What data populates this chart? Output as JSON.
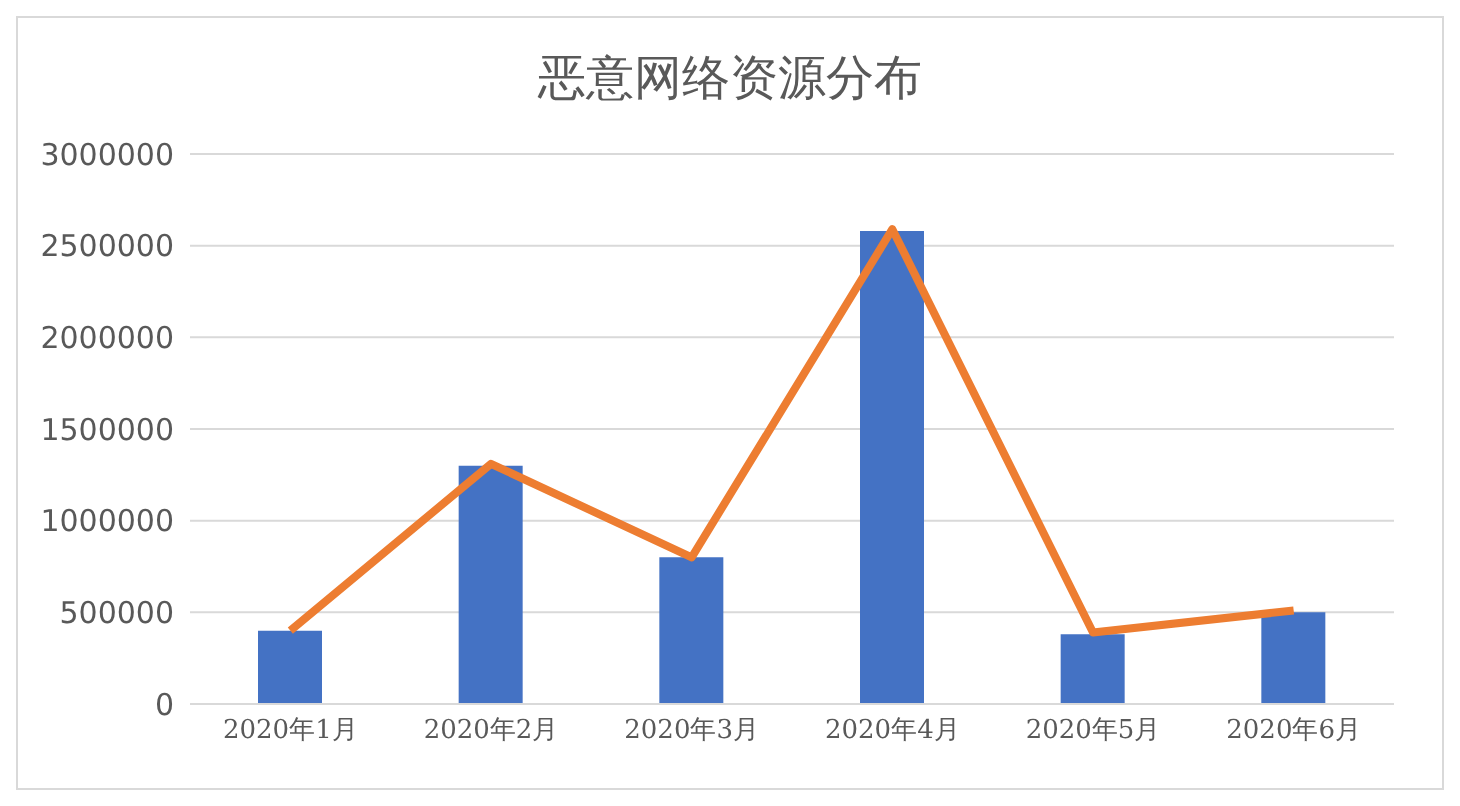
{
  "chart_data": {
    "type": "bar",
    "title": "恶意网络资源分布",
    "categories": [
      "2020年1月",
      "2020年2月",
      "2020年3月",
      "2020年4月",
      "2020年5月",
      "2020年6月"
    ],
    "series": [
      {
        "color": "#4472c4",
        "values": [
          400000,
          1300000,
          800000,
          2580000,
          380000,
          500000
        ]
      },
      {
        "type": "line",
        "color": "#ed7d31",
        "values": [
          400000,
          1310000,
          800000,
          2590000,
          390000,
          510000
        ]
      }
    ],
    "ylim": [
      0,
      3000000
    ],
    "yticks": [
      0,
      500000,
      1000000,
      1500000,
      2000000,
      2500000,
      3000000
    ],
    "grid": "y",
    "marker": "none"
  }
}
